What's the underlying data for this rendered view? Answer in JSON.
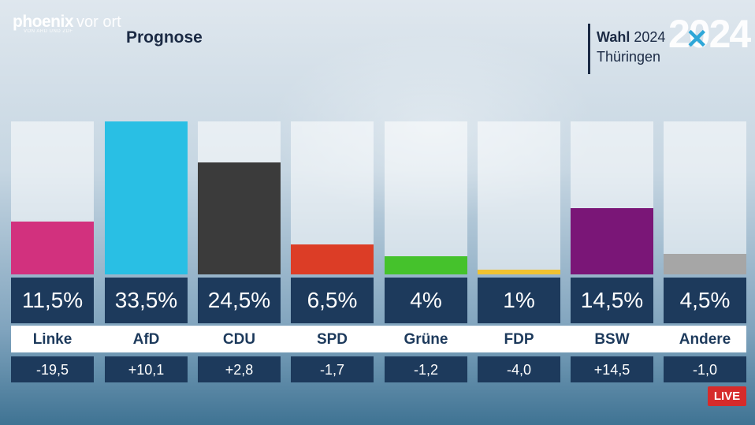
{
  "logo": {
    "name": "phoenix",
    "sub": "vor ort",
    "tagline": "VON ARD UND ZDF"
  },
  "header": {
    "title": "Prognose"
  },
  "election": {
    "label_bold": "Wahl",
    "year": "2024",
    "region": "Thüringen",
    "big_year": "2024"
  },
  "badge": {
    "live": "LIVE"
  },
  "chart_data": {
    "type": "bar",
    "title": "Prognose",
    "categories": [
      "Linke",
      "AfD",
      "CDU",
      "SPD",
      "Grüne",
      "FDP",
      "BSW",
      "Andere"
    ],
    "values": [
      11.5,
      33.5,
      24.5,
      6.5,
      4,
      1,
      14.5,
      4.5
    ],
    "value_labels": [
      "11,5%",
      "33,5%",
      "24,5%",
      "6,5%",
      "4%",
      "1%",
      "14,5%",
      "4,5%"
    ],
    "changes": [
      -19.5,
      10.1,
      2.8,
      -1.7,
      -1.2,
      -4.0,
      14.5,
      -1.0
    ],
    "change_labels": [
      "-19,5",
      "+10,1",
      "+2,8",
      "-1,7",
      "-1,2",
      "-4,0",
      "+14,5",
      "-1,0"
    ],
    "colors": [
      "#d2317e",
      "#29bfe4",
      "#3b3b3b",
      "#dc3d26",
      "#45c22c",
      "#f1c230",
      "#7a1677",
      "#a6a6a6"
    ],
    "ylim": [
      0,
      33.5
    ],
    "grid": false
  }
}
